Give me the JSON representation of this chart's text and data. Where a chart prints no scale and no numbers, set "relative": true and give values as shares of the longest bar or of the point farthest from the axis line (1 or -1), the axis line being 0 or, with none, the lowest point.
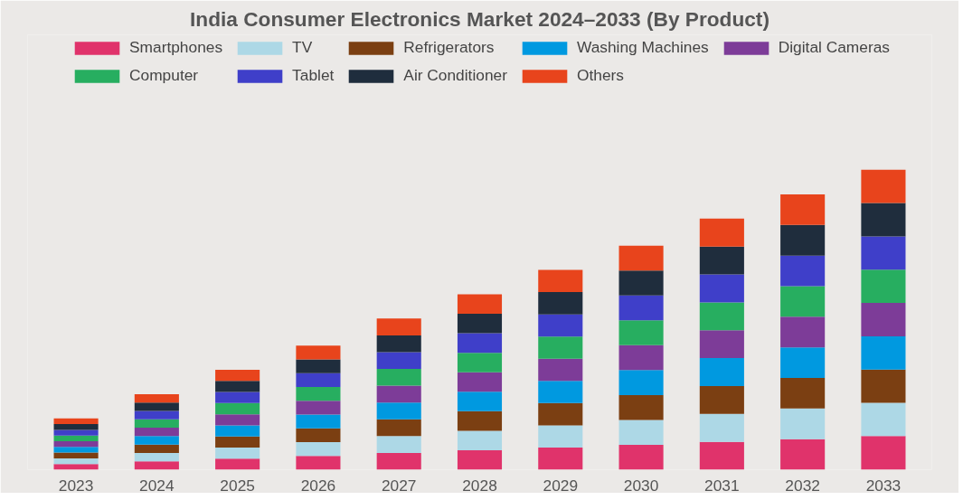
{
  "chart_data": {
    "type": "bar",
    "stacked": true,
    "relative": true,
    "title": "India Consumer Electronics Market 2024–2033 (By Product)",
    "legend": "top",
    "grid": false,
    "categories": [
      "2023",
      "2024",
      "2025",
      "2026",
      "2027",
      "2028",
      "2029",
      "2030",
      "2031",
      "2032",
      "2033"
    ],
    "series": [
      {
        "name": "Smartphones",
        "color": "#e0336b",
        "values": [
          0.019,
          0.028,
          0.037,
          0.046,
          0.056,
          0.065,
          0.074,
          0.083,
          0.093,
          0.102,
          0.112
        ]
      },
      {
        "name": "TV",
        "color": "#add8e6",
        "values": [
          0.019,
          0.028,
          0.037,
          0.046,
          0.056,
          0.065,
          0.074,
          0.083,
          0.093,
          0.102,
          0.111
        ]
      },
      {
        "name": "Refrigerators",
        "color": "#7b3f12",
        "values": [
          0.019,
          0.028,
          0.037,
          0.046,
          0.056,
          0.065,
          0.074,
          0.083,
          0.093,
          0.102,
          0.111
        ]
      },
      {
        "name": "Washing Machines",
        "color": "#0099e0",
        "values": [
          0.019,
          0.028,
          0.037,
          0.046,
          0.056,
          0.065,
          0.074,
          0.083,
          0.093,
          0.102,
          0.111
        ]
      },
      {
        "name": "Digital Cameras",
        "color": "#7d3c98",
        "values": [
          0.019,
          0.028,
          0.037,
          0.046,
          0.056,
          0.065,
          0.074,
          0.083,
          0.093,
          0.102,
          0.111
        ]
      },
      {
        "name": "Computer",
        "color": "#27ae60",
        "values": [
          0.019,
          0.028,
          0.037,
          0.046,
          0.056,
          0.065,
          0.074,
          0.083,
          0.093,
          0.102,
          0.111
        ]
      },
      {
        "name": "Tablet",
        "color": "#3f3fc9",
        "values": [
          0.019,
          0.028,
          0.037,
          0.046,
          0.056,
          0.065,
          0.074,
          0.083,
          0.093,
          0.102,
          0.111
        ]
      },
      {
        "name": "Air Conditioner",
        "color": "#1f2d3d",
        "values": [
          0.019,
          0.028,
          0.037,
          0.046,
          0.056,
          0.065,
          0.074,
          0.083,
          0.093,
          0.102,
          0.111
        ]
      },
      {
        "name": "Others",
        "color": "#e8441c",
        "values": [
          0.019,
          0.028,
          0.037,
          0.046,
          0.056,
          0.065,
          0.074,
          0.083,
          0.093,
          0.102,
          0.111
        ]
      }
    ]
  }
}
